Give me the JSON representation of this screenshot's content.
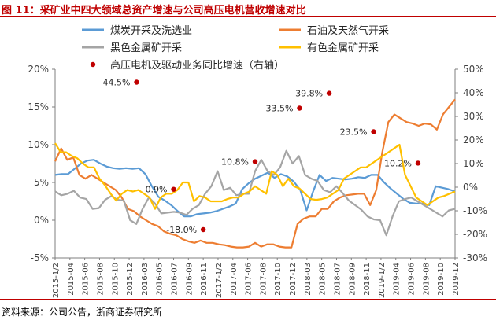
{
  "figure": {
    "title": "图 11：采矿业中四大领域总资产增速与公司高压电机营收增速对比",
    "source": "资料来源：公司公告，浙商证券研究所"
  },
  "chart_data": {
    "type": "line",
    "title": "图 11：采矿业中四大领域总资产增速与公司高压电机营收增速对比",
    "xlabel": "",
    "ylabel": "",
    "left_axis": {
      "min": -5,
      "max": 20,
      "step": 5,
      "unit": "%"
    },
    "right_axis": {
      "min": -30,
      "max": 50,
      "step": 10,
      "unit": "%",
      "note": "右轴"
    },
    "grid": false,
    "legend_position": "top",
    "x_tick_labels": [
      "2015-1/2",
      "2015-04",
      "2015-06",
      "2015-08",
      "2015-10",
      "2015-12",
      "2016-03",
      "2016-05",
      "2016-07",
      "2016-09",
      "2016-11",
      "2017-1/2",
      "2017-04",
      "2017-06",
      "2017-08",
      "2017-10",
      "2017-12",
      "2018-03",
      "2018-05",
      "2018-07",
      "2018-09",
      "2018-11",
      "2019-1/2",
      "2019-04",
      "2019-06",
      "2019-08",
      "2019-10",
      "2019-12"
    ],
    "series": [
      {
        "name": "煤炭开采及洗选业",
        "color": "#5b9bd5",
        "axis": "left",
        "values": [
          6.0,
          6.1,
          6.1,
          6.8,
          7.5,
          7.9,
          8.0,
          7.5,
          7.1,
          6.9,
          6.8,
          6.9,
          6.8,
          6.9,
          6.1,
          4.5,
          3.1,
          2.6,
          2.0,
          1.2,
          0.5,
          0.5,
          0.8,
          0.9,
          1.0,
          1.2,
          1.5,
          1.8,
          2.2,
          4.1,
          4.9,
          5.5,
          5.9,
          6.3,
          5.6,
          6.1,
          5.8,
          5.1,
          4.0,
          1.3,
          3.8,
          6.0,
          5.2,
          5.6,
          5.5,
          5.4,
          5.5,
          5.7,
          5.6,
          6.0,
          6.0,
          5.0,
          4.2,
          3.5,
          2.8,
          2.3,
          2.2,
          2.2,
          2.0,
          4.5,
          4.3,
          4.1,
          3.8
        ]
      },
      {
        "name": "石油及天然气开采",
        "color": "#ed7d31",
        "axis": "left",
        "values": [
          7.8,
          9.5,
          8.0,
          8.3,
          6.0,
          5.5,
          6.0,
          5.5,
          5.0,
          4.5,
          4.0,
          3.0,
          1.5,
          1.2,
          0.5,
          0.0,
          -0.5,
          -0.8,
          -1.5,
          -1.8,
          -2.0,
          -2.5,
          -2.8,
          -3.0,
          -2.7,
          -3.0,
          -3.0,
          -3.2,
          -3.3,
          -3.5,
          -3.6,
          -3.6,
          -3.5,
          -3.0,
          -3.5,
          -3.2,
          -3.2,
          -3.5,
          -3.6,
          -3.6,
          -0.5,
          0.2,
          0.5,
          0.5,
          1.5,
          1.5,
          2.5,
          3.0,
          3.3,
          3.4,
          3.5,
          3.5,
          2.0,
          4.0,
          9.0,
          13.0,
          14.0,
          13.5,
          13.0,
          12.8,
          12.5,
          12.8,
          12.7,
          12.0,
          14.0,
          15.0,
          16.0
        ]
      },
      {
        "name": "黑色金属矿开采",
        "color": "#a5a5a5",
        "axis": "left",
        "values": [
          3.8,
          3.3,
          3.5,
          3.9,
          3.0,
          2.8,
          1.5,
          1.6,
          2.7,
          3.2,
          2.7,
          2.6,
          0.0,
          -0.5,
          1.5,
          3.0,
          2.2,
          0.9,
          1.0,
          1.1,
          1.0,
          0.7,
          1.5,
          2.0,
          3.5,
          4.5,
          6.5,
          4.0,
          4.3,
          3.3,
          3.5,
          3.5,
          6.5,
          8.0,
          6.5,
          6.0,
          7.0,
          9.2,
          7.5,
          8.5,
          6.0,
          5.5,
          5.2,
          4.0,
          3.7,
          4.5,
          3.6,
          2.6,
          2.0,
          1.4,
          0.5,
          0.1,
          0.0,
          -2.0,
          0.5,
          2.5,
          2.8,
          3.0,
          2.5,
          2.0,
          1.5,
          1.0,
          0.5,
          1.3,
          1.5
        ]
      },
      {
        "name": "有色金属矿开采",
        "color": "#ffc000",
        "axis": "left",
        "values": [
          10.2,
          9.0,
          9.0,
          8.5,
          8.2,
          7.5,
          7.0,
          7.0,
          5.5,
          4.6,
          3.5,
          2.6,
          3.5,
          4.0,
          3.8,
          4.0,
          3.5,
          3.0,
          1.5,
          3.0,
          3.5,
          3.5,
          4.0,
          5.0,
          5.0,
          2.5,
          3.2,
          3.0,
          2.5,
          2.5,
          2.5,
          2.8,
          3.0,
          3.0,
          3.5,
          3.8,
          4.5,
          4.0,
          3.5,
          6.5,
          6.0,
          4.5,
          5.5,
          4.5,
          4.2,
          3.5,
          2.8,
          2.7,
          2.8,
          3.0,
          3.5,
          4.0,
          5.5,
          6.0,
          6.5,
          7.0,
          7.0,
          7.5,
          8.0,
          8.5,
          9.0,
          9.5,
          10.0,
          6.0,
          4.5,
          3.0,
          2.5,
          2.0,
          2.5,
          3.0,
          3.2,
          3.5,
          3.8
        ]
      },
      {
        "name": "高压电机及驱动业务同比增速（右轴）",
        "color": "#c00000",
        "axis": "right",
        "marker": "dot",
        "points": [
          {
            "xi": 5.5,
            "value": 44.5,
            "label": "44.5%"
          },
          {
            "xi": 8.0,
            "value": -0.9,
            "label": "-0.9%"
          },
          {
            "xi": 10.0,
            "value": -18.0,
            "label": "-18.0%"
          },
          {
            "xi": 13.5,
            "value": 10.8,
            "label": "10.8%"
          },
          {
            "xi": 16.5,
            "value": 33.5,
            "label": "33.5%"
          },
          {
            "xi": 18.5,
            "value": 39.8,
            "label": "39.8%"
          },
          {
            "xi": 21.5,
            "value": 23.5,
            "label": "23.5%"
          },
          {
            "xi": 24.5,
            "value": 10.2,
            "label": "10.2%"
          }
        ]
      }
    ]
  }
}
